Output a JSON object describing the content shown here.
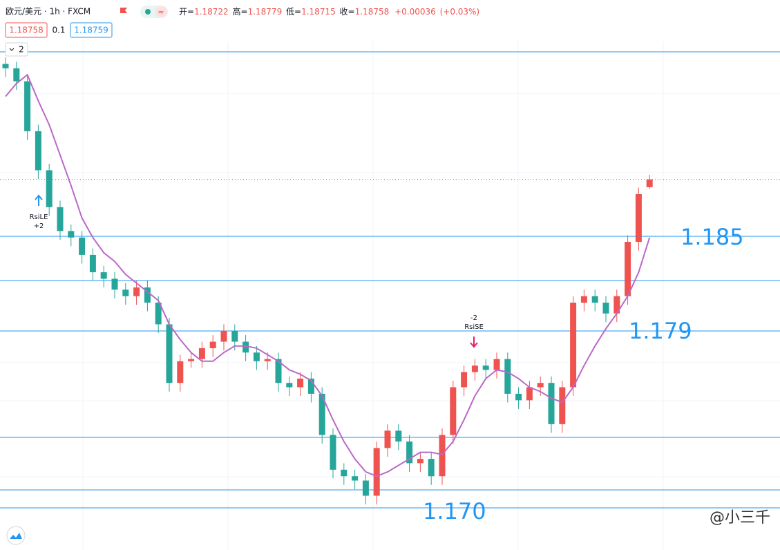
{
  "header": {
    "symbol": "欧元/美元 · 1h · FXCM",
    "ohlc_labels": [
      "开=",
      "高=",
      "低=",
      "收="
    ],
    "change": "+0.00036",
    "change_pct": "(+0.03%)",
    "spread": 0.1,
    "ask": 1.18759,
    "indicator_count": 2
  },
  "chart_data": {
    "type": "candlestick",
    "up_color": "#ef5350",
    "down_color": "#26a69a",
    "ylim": [
      1.1705,
      1.194
    ],
    "open": [
      1.1929,
      1.1927,
      1.1921,
      1.1898,
      1.188,
      1.1863,
      1.1852,
      1.1849,
      1.1841,
      1.1833,
      1.183,
      1.1825,
      1.1822,
      1.1826,
      1.1819,
      1.1809,
      1.1782,
      1.1792,
      1.1793,
      1.1798,
      1.1801,
      1.1806,
      1.1801,
      1.1796,
      1.1792,
      1.1793,
      1.1782,
      1.178,
      1.1784,
      1.1777,
      1.1758,
      1.1742,
      1.1739,
      1.1737,
      1.173,
      1.1752,
      1.176,
      1.1755,
      1.1745,
      1.1747,
      1.1739,
      1.1758,
      1.178,
      1.1787,
      1.179,
      1.1788,
      1.1793,
      1.1777,
      1.1774,
      1.178,
      1.1782,
      1.1763,
      1.178,
      1.1819,
      1.1822,
      1.1819,
      1.1814,
      1.1822,
      1.1847,
      1.18722
    ],
    "high": [
      1.1932,
      1.193,
      1.1924,
      1.1901,
      1.1883,
      1.1866,
      1.1855,
      1.1852,
      1.1844,
      1.1836,
      1.1833,
      1.1828,
      1.1829,
      1.1829,
      1.1822,
      1.1812,
      1.1795,
      1.1796,
      1.1801,
      1.1804,
      1.1809,
      1.1809,
      1.1804,
      1.1799,
      1.1796,
      1.1796,
      1.1785,
      1.1787,
      1.1787,
      1.178,
      1.1761,
      1.1745,
      1.1742,
      1.174,
      1.1755,
      1.1763,
      1.1763,
      1.1758,
      1.175,
      1.175,
      1.1761,
      1.1783,
      1.179,
      1.1793,
      1.1793,
      1.1796,
      1.1796,
      1.178,
      1.1783,
      1.1785,
      1.1785,
      1.1783,
      1.1822,
      1.1825,
      1.1825,
      1.1822,
      1.1825,
      1.185,
      1.1872,
      1.18779
    ],
    "low": [
      1.1923,
      1.1917,
      1.1894,
      1.1876,
      1.1859,
      1.1848,
      1.1845,
      1.1837,
      1.1829,
      1.1826,
      1.1821,
      1.1818,
      1.1818,
      1.1815,
      1.1805,
      1.1778,
      1.1778,
      1.1789,
      1.1789,
      1.1794,
      1.1797,
      1.1797,
      1.1792,
      1.1788,
      1.1788,
      1.1778,
      1.1776,
      1.1776,
      1.1773,
      1.1754,
      1.1738,
      1.1735,
      1.1733,
      1.1726,
      1.1726,
      1.1748,
      1.1751,
      1.1741,
      1.1741,
      1.1735,
      1.1735,
      1.1754,
      1.1776,
      1.1783,
      1.1784,
      1.1784,
      1.1773,
      1.177,
      1.177,
      1.1776,
      1.1759,
      1.1759,
      1.1776,
      1.1815,
      1.1815,
      1.181,
      1.181,
      1.1818,
      1.1843,
      1.18715
    ],
    "close": [
      1.1927,
      1.1921,
      1.1898,
      1.188,
      1.1863,
      1.1852,
      1.1849,
      1.1841,
      1.1833,
      1.183,
      1.1825,
      1.1822,
      1.1826,
      1.1819,
      1.1809,
      1.1782,
      1.1792,
      1.1793,
      1.1798,
      1.1801,
      1.1806,
      1.1801,
      1.1796,
      1.1792,
      1.1793,
      1.1782,
      1.178,
      1.1784,
      1.1777,
      1.1758,
      1.1742,
      1.1739,
      1.1737,
      1.173,
      1.1752,
      1.176,
      1.1755,
      1.1745,
      1.1747,
      1.1739,
      1.1758,
      1.178,
      1.1787,
      1.179,
      1.1788,
      1.1793,
      1.1777,
      1.1774,
      1.178,
      1.1782,
      1.1763,
      1.178,
      1.1819,
      1.1822,
      1.1819,
      1.1814,
      1.1822,
      1.1847,
      1.1869,
      1.18758
    ],
    "ma": {
      "color": "#ba68c8",
      "values": [
        1.1914,
        1.192,
        1.1924,
        1.1912,
        1.1901,
        1.1887,
        1.1873,
        1.1858,
        1.1849,
        1.1842,
        1.1838,
        1.1832,
        1.1828,
        1.1824,
        1.182,
        1.1809,
        1.1802,
        1.1796,
        1.1792,
        1.1792,
        1.1796,
        1.1799,
        1.1799,
        1.1798,
        1.1795,
        1.1792,
        1.1788,
        1.1786,
        1.1783,
        1.1776,
        1.1765,
        1.1755,
        1.1747,
        1.1741,
        1.1739,
        1.1741,
        1.1744,
        1.1747,
        1.175,
        1.175,
        1.1749,
        1.1755,
        1.1765,
        1.1776,
        1.1784,
        1.1788,
        1.1787,
        1.1784,
        1.178,
        1.1778,
        1.1775,
        1.1773,
        1.178,
        1.179,
        1.1799,
        1.1807,
        1.1814,
        1.1822,
        1.1833,
        1.1849
      ]
    },
    "annotations": [
      "1.185",
      "1.179",
      "1.170"
    ],
    "signals": [
      {
        "label": "RsiLE",
        "qty": "+2"
      },
      {
        "label": "RsiSE",
        "qty": "-2"
      }
    ],
    "watermark": "@小三千"
  }
}
